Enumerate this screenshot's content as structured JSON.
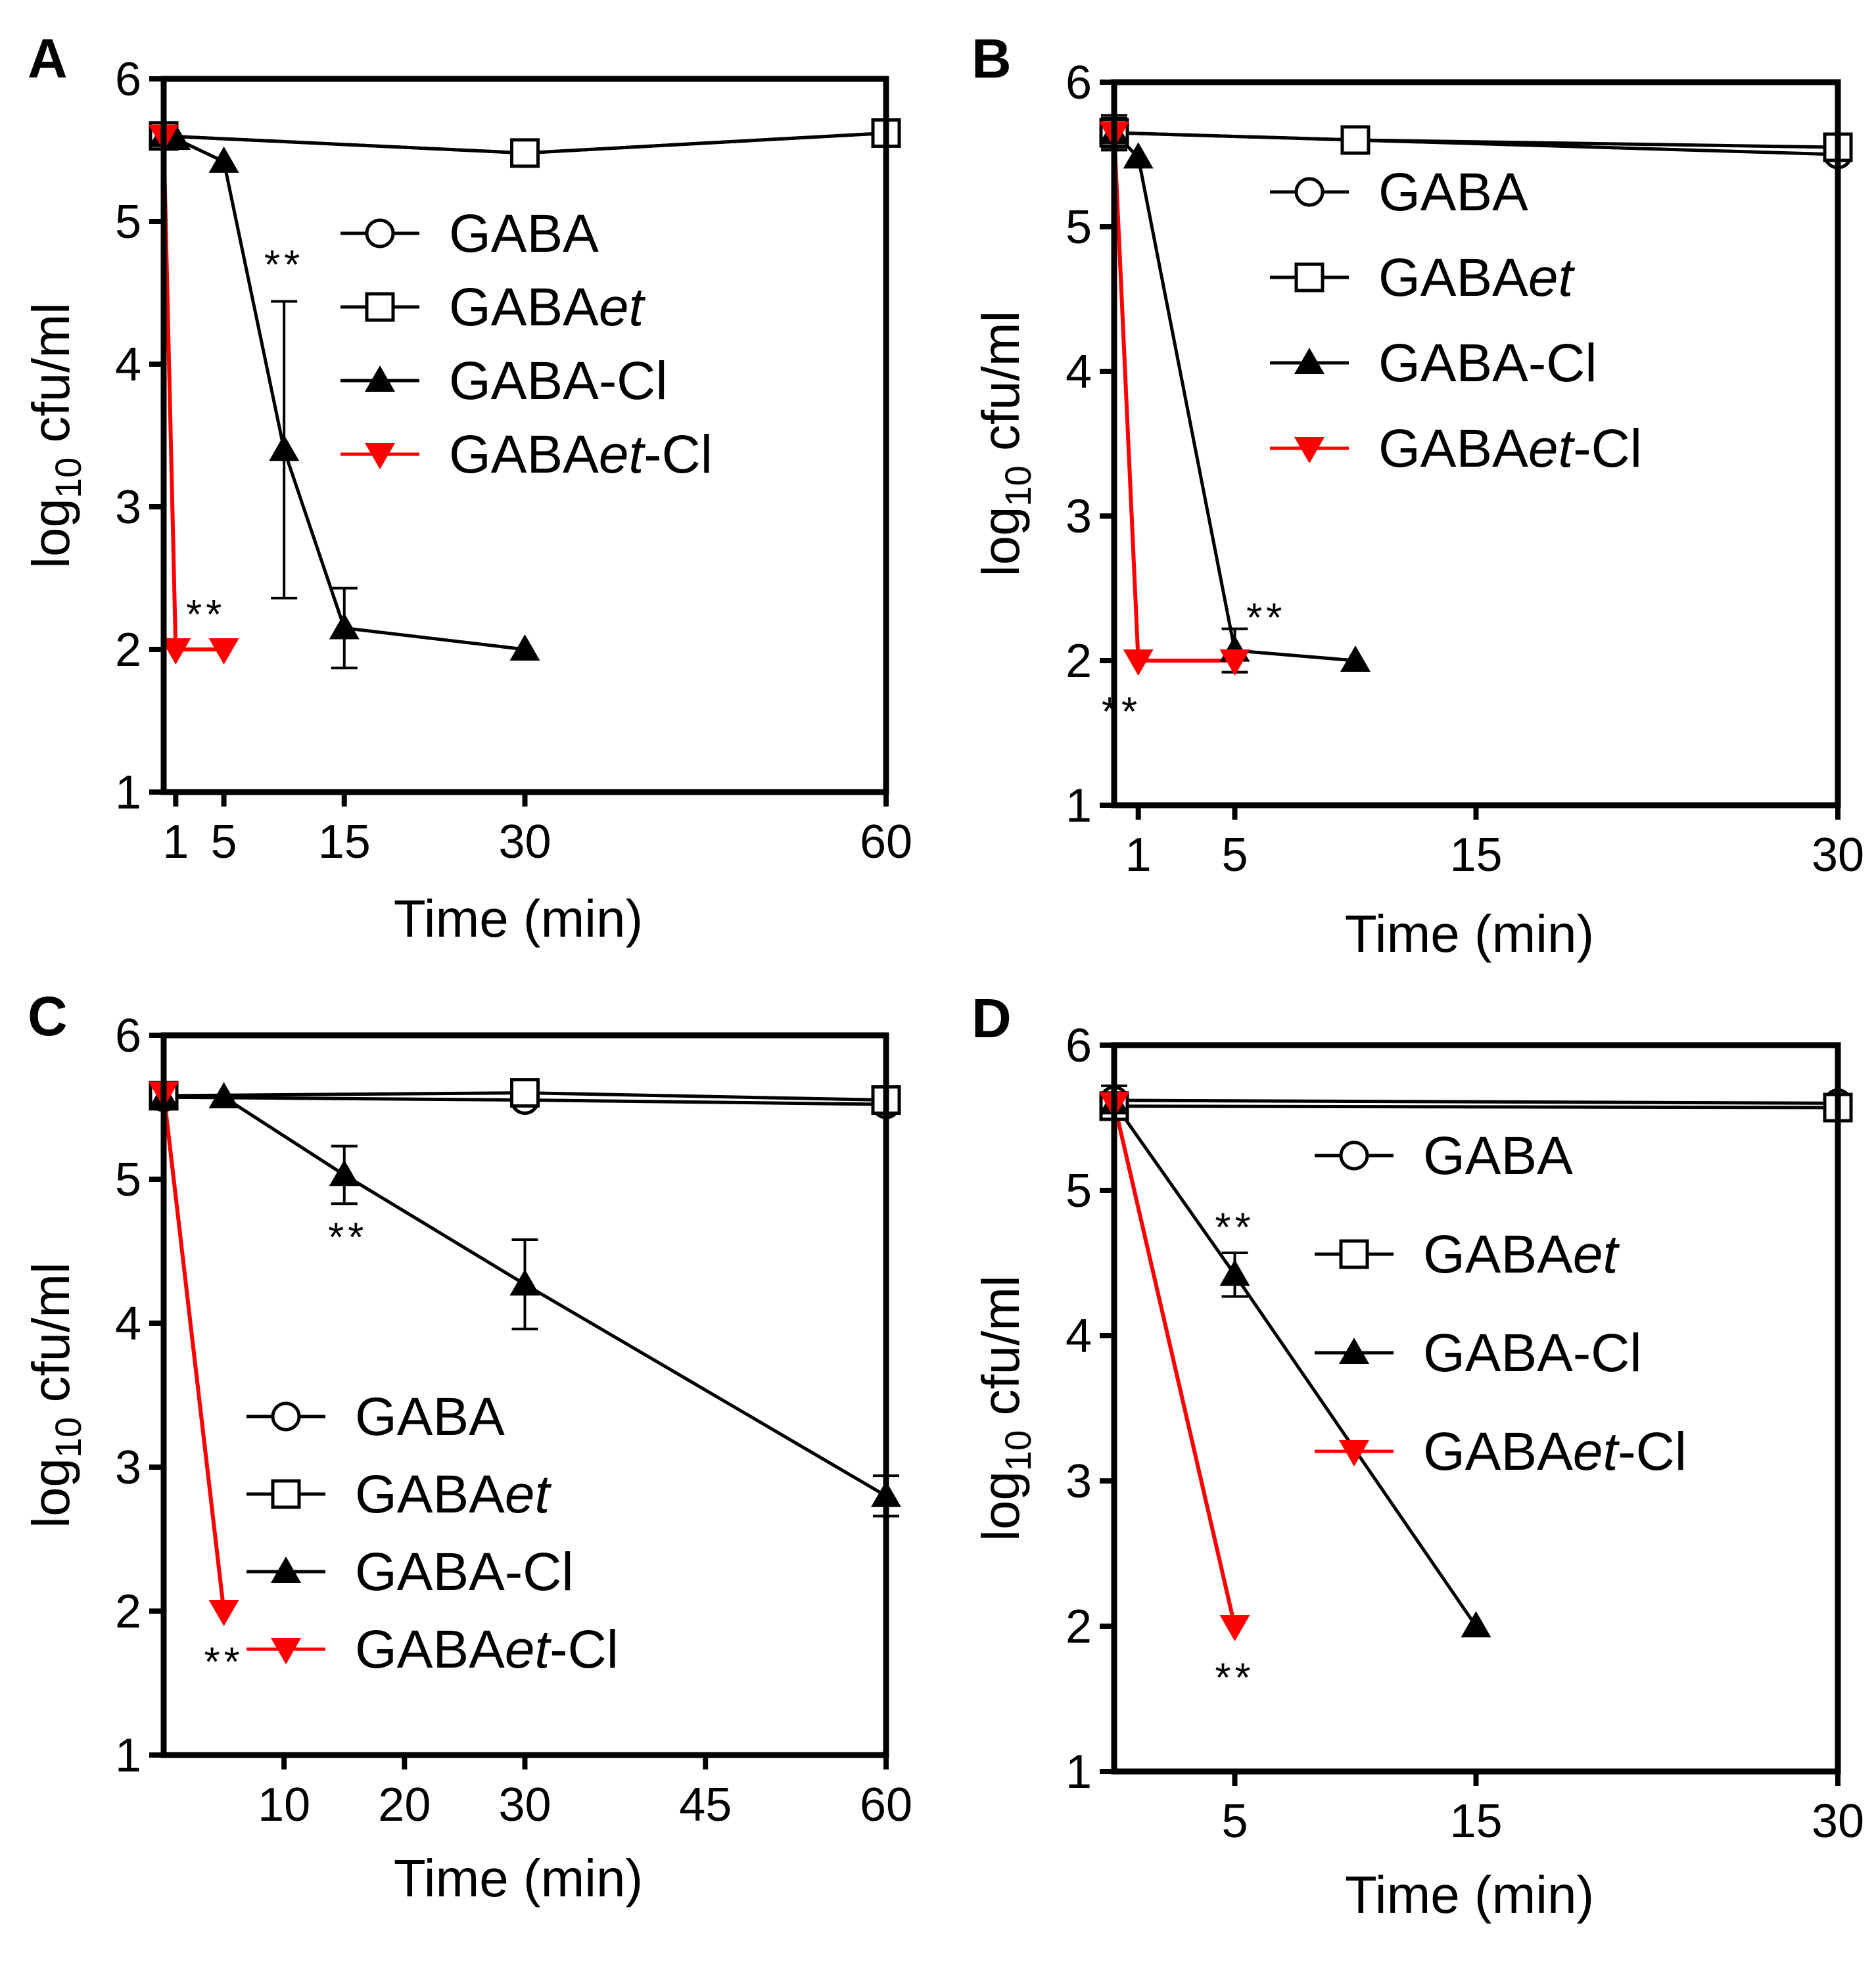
{
  "chart_data": [
    {
      "type": "line",
      "panel": "A",
      "xlabel": "Time (min)",
      "ylabel_main": "log",
      "ylabel_sub": "10",
      "ylabel_tail": " cfu/ml",
      "ylim": [
        1,
        6
      ],
      "xlim": [
        0,
        60
      ],
      "x_ticks": [
        1,
        5,
        15,
        30,
        60
      ],
      "x_tick_labels": [
        "1",
        "5",
        "15",
        "30",
        "60"
      ],
      "y_ticks": [
        1,
        2,
        3,
        4,
        5,
        6
      ],
      "y_tick_labels": [
        "1",
        "2",
        "3",
        "4",
        "5",
        "6"
      ],
      "series": [
        {
          "name": "GABA",
          "name_main": "GABA",
          "name_italic": "",
          "name_tail": "",
          "marker": "circle",
          "color": "#000000",
          "x": [
            0,
            30,
            60
          ],
          "y": [
            5.6,
            5.48,
            5.62
          ],
          "err": [
            0,
            0,
            0
          ]
        },
        {
          "name": "GABAet",
          "name_main": "GABA",
          "name_italic": "et",
          "name_tail": "",
          "marker": "square",
          "color": "#000000",
          "x": [
            0,
            30,
            60
          ],
          "y": [
            5.6,
            5.48,
            5.62
          ],
          "err": [
            0,
            0,
            0
          ]
        },
        {
          "name": "GABA-Cl",
          "name_main": "GABA-Cl",
          "name_italic": "",
          "name_tail": "",
          "marker": "triangle-up",
          "color": "#000000",
          "x": [
            0,
            1,
            5,
            10,
            15,
            30
          ],
          "y": [
            5.6,
            5.58,
            5.42,
            3.4,
            2.15,
            2.0
          ],
          "err": [
            0,
            0,
            0,
            1.04,
            0.28,
            0
          ]
        },
        {
          "name": "GABAet-Cl",
          "name_main": "GABA",
          "name_italic": "et",
          "name_tail": "-Cl",
          "marker": "triangle-down",
          "color": "#ff0000",
          "x": [
            0,
            1,
            5
          ],
          "y": [
            5.6,
            2.0,
            2.0
          ],
          "err": [
            0,
            0,
            0
          ]
        }
      ],
      "annotations": [
        {
          "text": "**",
          "x": 10,
          "y": 4.7
        },
        {
          "text": "**",
          "x": 3.5,
          "y": 2.25
        }
      ]
    },
    {
      "type": "line",
      "panel": "B",
      "xlabel": "Time (min)",
      "ylabel_main": "log",
      "ylabel_sub": "10",
      "ylabel_tail": " cfu/ml",
      "ylim": [
        1,
        6
      ],
      "xlim": [
        0,
        30
      ],
      "x_ticks": [
        1,
        5,
        15,
        30
      ],
      "x_tick_labels": [
        "1",
        "5",
        "15",
        "30"
      ],
      "y_ticks": [
        1,
        2,
        3,
        4,
        5,
        6
      ],
      "y_tick_labels": [
        "1",
        "2",
        "3",
        "4",
        "5",
        "6"
      ],
      "series": [
        {
          "name": "GABA",
          "name_main": "GABA",
          "name_italic": "",
          "name_tail": "",
          "marker": "circle",
          "color": "#000000",
          "x": [
            0,
            30
          ],
          "y": [
            5.65,
            5.5
          ],
          "err": [
            0.1,
            0
          ]
        },
        {
          "name": "GABAet",
          "name_main": "GABA",
          "name_italic": "et",
          "name_tail": "",
          "marker": "square",
          "color": "#000000",
          "x": [
            0,
            10,
            30
          ],
          "y": [
            5.65,
            5.6,
            5.55
          ],
          "err": [
            0.12,
            0,
            0
          ]
        },
        {
          "name": "GABA-Cl",
          "name_main": "GABA-Cl",
          "name_italic": "",
          "name_tail": "",
          "marker": "triangle-up",
          "color": "#000000",
          "x": [
            0,
            1,
            5,
            10
          ],
          "y": [
            5.65,
            5.48,
            2.07,
            2.0
          ],
          "err": [
            0,
            0,
            0.15,
            0
          ]
        },
        {
          "name": "GABAet-Cl",
          "name_main": "GABA",
          "name_italic": "et",
          "name_tail": "-Cl",
          "marker": "triangle-down",
          "color": "#ff0000",
          "x": [
            0,
            1,
            5
          ],
          "y": [
            5.65,
            2.0,
            2.0
          ],
          "err": [
            0,
            0,
            0
          ]
        }
      ],
      "annotations": [
        {
          "text": "**",
          "x": 6.3,
          "y": 2.3
        },
        {
          "text": "**",
          "x": 0.3,
          "y": 1.65
        }
      ]
    },
    {
      "type": "line",
      "panel": "C",
      "xlabel": "Time (min)",
      "ylabel_main": "log",
      "ylabel_sub": "10",
      "ylabel_tail": " cfu/ml",
      "ylim": [
        1,
        6
      ],
      "xlim": [
        0,
        60
      ],
      "x_ticks": [
        10,
        20,
        30,
        45,
        60
      ],
      "x_tick_labels": [
        "10",
        "20",
        "30",
        "45",
        "60"
      ],
      "y_ticks": [
        1,
        2,
        3,
        4,
        5,
        6
      ],
      "y_tick_labels": [
        "1",
        "2",
        "3",
        "4",
        "5",
        "6"
      ],
      "series": [
        {
          "name": "GABA",
          "name_main": "GABA",
          "name_italic": "",
          "name_tail": "",
          "marker": "circle",
          "color": "#000000",
          "x": [
            0,
            30,
            60
          ],
          "y": [
            5.57,
            5.55,
            5.52
          ],
          "err": [
            0,
            0,
            0
          ]
        },
        {
          "name": "GABAet",
          "name_main": "GABA",
          "name_italic": "et",
          "name_tail": "",
          "marker": "square",
          "color": "#000000",
          "x": [
            0,
            30,
            60
          ],
          "y": [
            5.58,
            5.6,
            5.55
          ],
          "err": [
            0,
            0,
            0
          ]
        },
        {
          "name": "GABA-Cl",
          "name_main": "GABA-Cl",
          "name_italic": "",
          "name_tail": "",
          "marker": "triangle-up",
          "color": "#000000",
          "x": [
            0,
            5,
            15,
            30,
            60
          ],
          "y": [
            5.57,
            5.57,
            5.03,
            4.27,
            2.8
          ],
          "err": [
            0,
            0,
            0.2,
            0.31,
            0.14
          ]
        },
        {
          "name": "GABAet-Cl",
          "name_main": "GABA",
          "name_italic": "et",
          "name_tail": "-Cl",
          "marker": "triangle-down",
          "color": "#ff0000",
          "x": [
            0,
            5
          ],
          "y": [
            5.6,
            2.0
          ],
          "err": [
            0,
            0
          ]
        }
      ],
      "annotations": [
        {
          "text": "**",
          "x": 15.3,
          "y": 4.6
        },
        {
          "text": "**",
          "x": 5,
          "y": 1.65
        }
      ]
    },
    {
      "type": "line",
      "panel": "D",
      "xlabel": "Time (min)",
      "ylabel_main": "log",
      "ylabel_sub": "10",
      "ylabel_tail": " cfu/ml",
      "ylim": [
        1,
        6
      ],
      "xlim": [
        0,
        30
      ],
      "x_ticks": [
        5,
        15,
        30
      ],
      "x_tick_labels": [
        "5",
        "15",
        "30"
      ],
      "y_ticks": [
        1,
        2,
        3,
        4,
        5,
        6
      ],
      "y_tick_labels": [
        "1",
        "2",
        "3",
        "4",
        "5",
        "6"
      ],
      "series": [
        {
          "name": "GABA",
          "name_main": "GABA",
          "name_italic": "",
          "name_tail": "",
          "marker": "circle",
          "color": "#000000",
          "x": [
            0,
            30
          ],
          "y": [
            5.62,
            5.6
          ],
          "err": [
            0.1,
            0
          ]
        },
        {
          "name": "GABAet",
          "name_main": "GABA",
          "name_italic": "et",
          "name_tail": "",
          "marker": "square",
          "color": "#000000",
          "x": [
            0,
            30
          ],
          "y": [
            5.58,
            5.57
          ],
          "err": [
            0,
            0
          ]
        },
        {
          "name": "GABA-Cl",
          "name_main": "GABA-Cl",
          "name_italic": "",
          "name_tail": "",
          "marker": "triangle-up",
          "color": "#000000",
          "x": [
            0,
            5,
            15
          ],
          "y": [
            5.6,
            4.42,
            2.0
          ],
          "err": [
            0,
            0.15,
            0
          ]
        },
        {
          "name": "GABAet-Cl",
          "name_main": "GABA",
          "name_italic": "et",
          "name_tail": "-Cl",
          "marker": "triangle-down",
          "color": "#ff0000",
          "x": [
            0,
            5
          ],
          "y": [
            5.6,
            2.0
          ],
          "err": [
            0,
            0
          ]
        }
      ],
      "annotations": [
        {
          "text": "**",
          "x": 5,
          "y": 4.75
        },
        {
          "text": "**",
          "x": 5,
          "y": 1.65
        }
      ]
    }
  ]
}
